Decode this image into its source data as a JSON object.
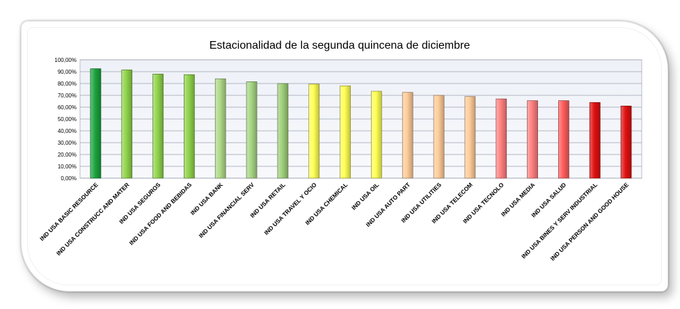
{
  "chart_data": {
    "type": "bar",
    "title": "Estacionalidad de la segunda quincena de  diciembre",
    "xlabel": "",
    "ylabel": "",
    "ylim": [
      0,
      100
    ],
    "grid": true,
    "legend": "none",
    "yticks": [
      "0,00%",
      "10,00%",
      "20,00%",
      "30,00%",
      "40,00%",
      "50,00%",
      "60,00%",
      "70,00%",
      "80,00%",
      "90,00%",
      "100,00%"
    ],
    "categories": [
      "IND USA BASIC RESOURCE",
      "IND USA CONSTRUCC AND MATER",
      "IND USA SEGUROS",
      "IND USA FOOD AND BEBIDAS",
      "IND USA BANK",
      "IND USA FINANCIAL SERV",
      "IND USA RETAIL",
      "IND USA TRAVEL Y OCIO",
      "IND USA CHEMICAL",
      "IND USA OIL",
      "IND USA AUTO PART",
      "IND USA UTILITIES",
      "IND USA TELECOM",
      "IND USA TECNOLO",
      "IND USA MEDIA",
      "IND USA SALUD",
      "IND USA BINES Y SERV INDUSTRIAL",
      "IND USA PERSON AND GOOD HOUSE"
    ],
    "values": [
      92.5,
      91.5,
      88,
      87.5,
      84,
      81.5,
      80,
      79.5,
      78,
      73.5,
      72.5,
      70,
      69,
      67,
      65.5,
      65.5,
      64,
      61
    ],
    "colors": [
      "#1aa33c",
      "#8fd34a",
      "#8fd34a",
      "#8fd34a",
      "#b0da88",
      "#a6d683",
      "#9fcf7a",
      "#ffff55",
      "#ffff55",
      "#ffff55",
      "#ffcc99",
      "#ffcc99",
      "#ffcc99",
      "#ff7f7f",
      "#ff7f7f",
      "#ff5c5c",
      "#e01010",
      "#e01010"
    ]
  }
}
